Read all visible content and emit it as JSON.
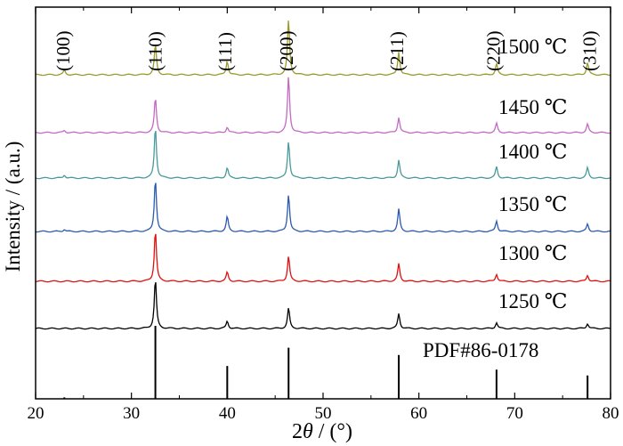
{
  "chart_data": {
    "type": "line",
    "xlabel_prefix": "2",
    "xlabel_symbol": "θ",
    "xlabel_suffix": " / (°)",
    "ylabel": "Intensity / (a.u.)",
    "xlim": [
      20,
      80
    ],
    "x_ticks": [
      "20",
      "30",
      "40",
      "50",
      "60",
      "70",
      "80"
    ],
    "hkl_labels": [
      {
        "text": "(100)",
        "x": 23.1
      },
      {
        "text": "(110)",
        "x": 32.7
      },
      {
        "text": "(111)",
        "x": 40.0
      },
      {
        "text": "(200)",
        "x": 46.4
      },
      {
        "text": "(211)",
        "x": 57.9
      },
      {
        "text": "(220)",
        "x": 68.0
      },
      {
        "text": "(310)",
        "x": 78.0
      }
    ],
    "series": [
      {
        "name": "1500 ℃",
        "color": "#9a9a2a",
        "peaks": [
          {
            "x": 23.0,
            "h": 0.08
          },
          {
            "x": 32.5,
            "h": 0.55
          },
          {
            "x": 40.0,
            "h": 0.25
          },
          {
            "x": 46.4,
            "h": 1.0
          },
          {
            "x": 57.9,
            "h": 0.42
          },
          {
            "x": 68.1,
            "h": 0.2
          },
          {
            "x": 77.6,
            "h": 0.22
          }
        ]
      },
      {
        "name": "1450 ℃",
        "color": "#c26ac2",
        "peaks": [
          {
            "x": 23.0,
            "h": 0.04
          },
          {
            "x": 32.5,
            "h": 0.62
          },
          {
            "x": 40.0,
            "h": 0.1
          },
          {
            "x": 46.4,
            "h": 1.0
          },
          {
            "x": 57.9,
            "h": 0.27
          },
          {
            "x": 68.1,
            "h": 0.16
          },
          {
            "x": 77.6,
            "h": 0.15
          }
        ]
      },
      {
        "name": "1400 ℃",
        "color": "#4a9a9a",
        "peaks": [
          {
            "x": 23.0,
            "h": 0.06
          },
          {
            "x": 32.5,
            "h": 1.0
          },
          {
            "x": 40.0,
            "h": 0.2
          },
          {
            "x": 46.4,
            "h": 0.72
          },
          {
            "x": 57.9,
            "h": 0.35
          },
          {
            "x": 68.1,
            "h": 0.22
          },
          {
            "x": 77.6,
            "h": 0.2
          }
        ]
      },
      {
        "name": "1350 ℃",
        "color": "#2a5ab0",
        "peaks": [
          {
            "x": 23.0,
            "h": 0.04
          },
          {
            "x": 32.5,
            "h": 1.0
          },
          {
            "x": 40.0,
            "h": 0.28
          },
          {
            "x": 46.4,
            "h": 0.7
          },
          {
            "x": 57.9,
            "h": 0.42
          },
          {
            "x": 68.1,
            "h": 0.2
          },
          {
            "x": 77.6,
            "h": 0.14
          }
        ]
      },
      {
        "name": "1300 ℃",
        "color": "#e01010",
        "peaks": [
          {
            "x": 32.5,
            "h": 1.0
          },
          {
            "x": 40.0,
            "h": 0.18
          },
          {
            "x": 46.4,
            "h": 0.49
          },
          {
            "x": 57.9,
            "h": 0.34
          },
          {
            "x": 68.1,
            "h": 0.14
          },
          {
            "x": 77.6,
            "h": 0.12
          }
        ]
      },
      {
        "name": "1250 ℃",
        "color": "#000000",
        "peaks": [
          {
            "x": 32.5,
            "h": 1.0
          },
          {
            "x": 40.0,
            "h": 0.15
          },
          {
            "x": 46.4,
            "h": 0.41
          },
          {
            "x": 57.9,
            "h": 0.3
          },
          {
            "x": 68.1,
            "h": 0.12
          },
          {
            "x": 77.6,
            "h": 0.1
          }
        ]
      }
    ],
    "reference": {
      "name": "PDF#86-0178",
      "lines": [
        {
          "x": 23.0,
          "h": 0.02
        },
        {
          "x": 32.5,
          "h": 1.0
        },
        {
          "x": 40.0,
          "h": 0.45
        },
        {
          "x": 46.4,
          "h": 0.7
        },
        {
          "x": 57.9,
          "h": 0.6
        },
        {
          "x": 68.1,
          "h": 0.4
        },
        {
          "x": 77.6,
          "h": 0.32
        }
      ]
    }
  }
}
